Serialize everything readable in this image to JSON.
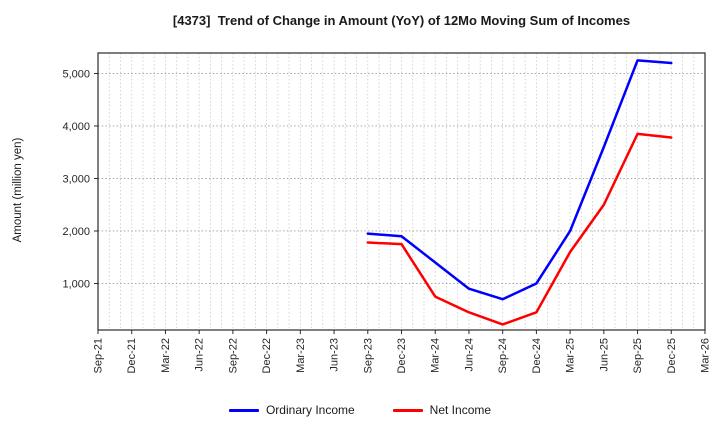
{
  "title": "[4373]  Trend of Change in Amount (YoY) of 12Mo Moving Sum of Incomes",
  "chart_data": {
    "type": "line",
    "title": "[4373]  Trend of Change in Amount (YoY) of 12Mo Moving Sum of Incomes",
    "xlabel": "",
    "ylabel": "Amount (million yen)",
    "x_tick_labels": [
      "Sep-21",
      "Dec-21",
      "Mar-22",
      "Jun-22",
      "Sep-22",
      "Dec-22",
      "Mar-23",
      "Jun-23",
      "Sep-23",
      "Dec-23",
      "Mar-24",
      "Jun-24",
      "Sep-24",
      "Dec-24",
      "Mar-25",
      "Jun-25",
      "Sep-25",
      "Dec-25",
      "Mar-26"
    ],
    "y_ticks": [
      1000,
      2000,
      3000,
      4000,
      5000
    ],
    "ylim": [
      114,
      5390
    ],
    "grid": true,
    "minor_x_divisions_per_interval": 3,
    "legend_position": "bottom-center",
    "categories": [
      "Sep-23",
      "Dec-23",
      "Mar-24",
      "Jun-24",
      "Sep-24",
      "Dec-24",
      "Mar-25",
      "Jun-25",
      "Sep-25",
      "Dec-25"
    ],
    "series": [
      {
        "name": "Ordinary Income",
        "color": "#0000ff",
        "values": [
          1950,
          1900,
          1400,
          900,
          700,
          1000,
          2000,
          3600,
          5250,
          5200
        ]
      },
      {
        "name": "Net Income",
        "color": "#ff0000",
        "values": [
          1780,
          1750,
          750,
          450,
          220,
          450,
          1600,
          2500,
          3850,
          3780
        ]
      }
    ]
  },
  "colors": {
    "background": "#ffffff",
    "plot_border": "#2a2a2a",
    "grid_vertical": "#c9c9c9",
    "grid_horizontal": "#9a9a9a",
    "tick_text": "#262626",
    "title_text": "#1a1a1a"
  },
  "icons": {}
}
